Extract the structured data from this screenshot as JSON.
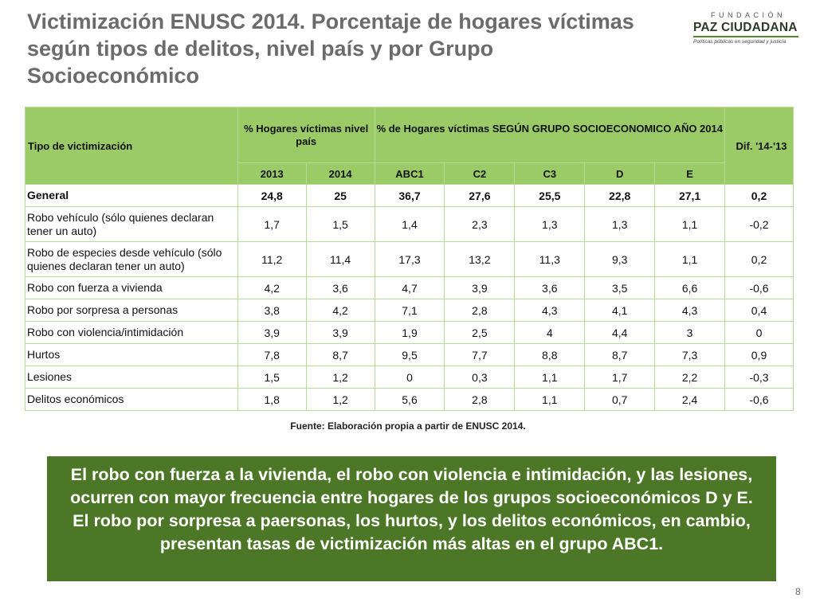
{
  "title": "Victimización ENUSC 2014. Porcentaje de hogares víctimas según tipos de delitos, nivel país y por Grupo Socioeconómico",
  "logo": {
    "top": "FUNDACIÓN",
    "main": "PAZ CIUDADANA",
    "subtitle": "Políticas públicas en seguridad y justicia"
  },
  "table": {
    "header": {
      "tipo": "Tipo de victimización",
      "nivel_pais": "% Hogares víctimas nivel país",
      "grupo": "% de Hogares víctimas SEGÚN GRUPO SOCIOECONOMICO AÑO 2014",
      "dif": "Dif. '14-'13",
      "years": [
        "2013",
        "2014"
      ],
      "groups": [
        "ABC1",
        "C2",
        "C3",
        "D",
        "E"
      ]
    },
    "rows": [
      {
        "label": "General",
        "values": [
          "24,8",
          "25",
          "36,7",
          "27,6",
          "25,5",
          "22,8",
          "27,1",
          "0,2"
        ]
      },
      {
        "label": "Robo vehículo (sólo quienes declaran tener un auto)",
        "values": [
          "1,7",
          "1,5",
          "1,4",
          "2,3",
          "1,3",
          "1,3",
          "1,1",
          "-0,2"
        ]
      },
      {
        "label": "Robo de especies desde vehículo (sólo quienes declaran tener un auto)",
        "values": [
          "11,2",
          "11,4",
          "17,3",
          "13,2",
          "11,3",
          "9,3",
          "1,1",
          "0,2"
        ]
      },
      {
        "label": "Robo con fuerza a vivienda",
        "values": [
          "4,2",
          "3,6",
          "4,7",
          "3,9",
          "3,6",
          "3,5",
          "6,6",
          "-0,6"
        ]
      },
      {
        "label": "Robo por sorpresa a personas",
        "values": [
          "3,8",
          "4,2",
          "7,1",
          "2,8",
          "4,3",
          "4,1",
          "4,3",
          "0,4"
        ]
      },
      {
        "label": "Robo con violencia/intimidación",
        "values": [
          "3,9",
          "3,9",
          "1,9",
          "2,5",
          "4",
          "4,4",
          "3",
          "0"
        ]
      },
      {
        "label": "Hurtos",
        "values": [
          "7,8",
          "8,7",
          "9,5",
          "7,7",
          "8,8",
          "8,7",
          "7,3",
          "0,9"
        ]
      },
      {
        "label": "Lesiones",
        "values": [
          "1,5",
          "1,2",
          "0",
          "0,3",
          "1,1",
          "1,7",
          "2,2",
          "-0,3"
        ]
      },
      {
        "label": "Delitos económicos",
        "values": [
          "1,8",
          "1,2",
          "5,6",
          "2,8",
          "1,1",
          "0,7",
          "2,4",
          "-0,6"
        ]
      }
    ]
  },
  "source": "Fuente: Elaboración propia a partir de ENUSC 2014.",
  "callout": "El robo con fuerza a la vivienda, el robo con violencia e intimidación, y las lesiones, ocurren con mayor frecuencia entre hogares de los grupos socioeconómicos D y E. El robo por sorpresa a paersonas, los hurtos, y los delitos económicos, en cambio, presentan tasas de victimización más altas en el grupo ABC1.",
  "page_number": "8",
  "colors": {
    "header_bg": "#9bcb67",
    "border": "#b9d99a",
    "callout_bg": "#4c7726",
    "title_text": "#6b6b6b"
  }
}
